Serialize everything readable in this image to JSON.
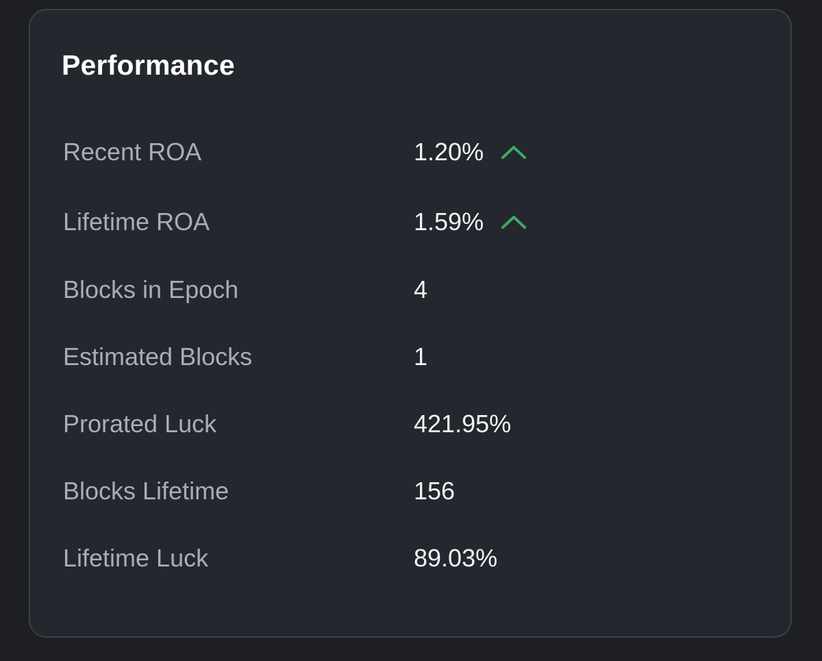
{
  "card": {
    "title": "Performance"
  },
  "colors": {
    "background": "#1d1f23",
    "card": "#24272e",
    "border": "#3d4048",
    "label": "#a9adb6",
    "value": "#f2f3f5",
    "trend_up": "#3fa865"
  },
  "metrics": [
    {
      "label": "Recent ROA",
      "value": "1.20%",
      "trend_icon": "chevron-up-icon"
    },
    {
      "label": "Lifetime ROA",
      "value": "1.59%",
      "trend_icon": "chevron-up-icon"
    },
    {
      "label": "Blocks in Epoch",
      "value": "4"
    },
    {
      "label": "Estimated Blocks",
      "value": "1"
    },
    {
      "label": "Prorated Luck",
      "value": "421.95%"
    },
    {
      "label": "Blocks Lifetime",
      "value": "156"
    },
    {
      "label": "Lifetime Luck",
      "value": "89.03%"
    }
  ]
}
